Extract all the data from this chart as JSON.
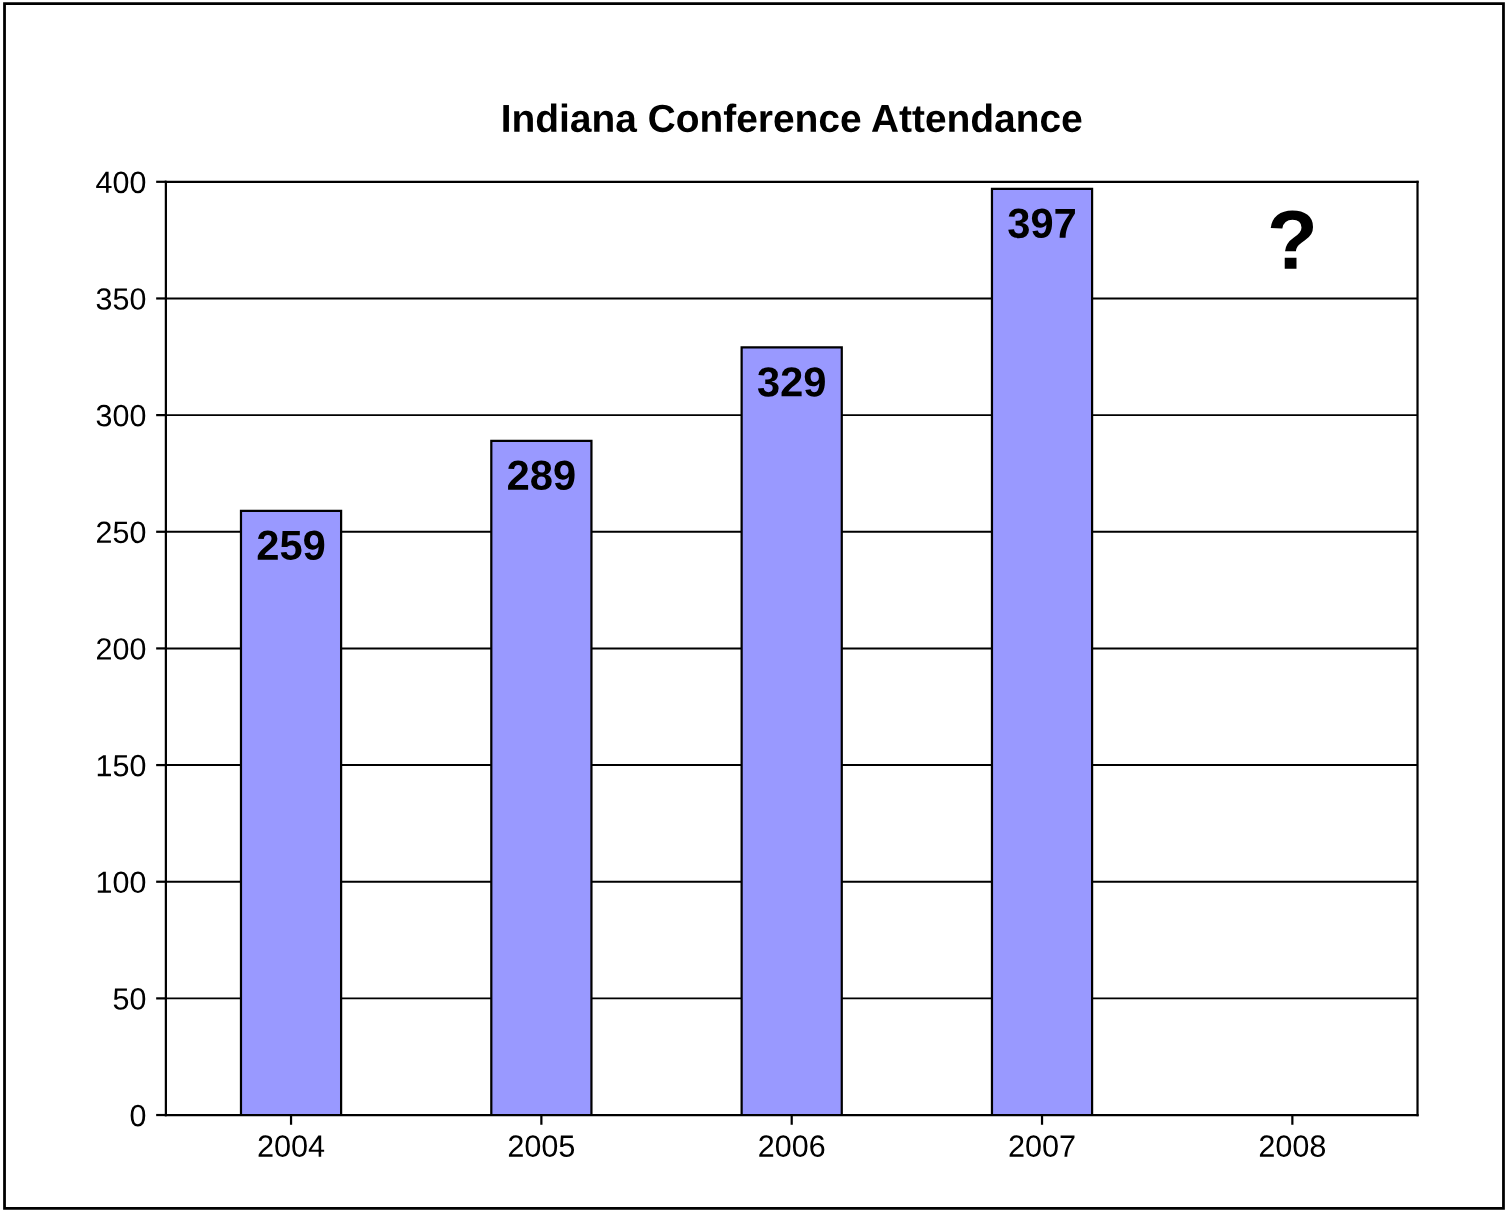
{
  "chart_data": {
    "type": "bar",
    "title": "Indiana Conference Attendance",
    "categories": [
      "2004",
      "2005",
      "2006",
      "2007",
      "2008"
    ],
    "values": [
      259,
      289,
      329,
      397,
      null
    ],
    "color": "#9999ff",
    "ylim": [
      0,
      400
    ],
    "yticks": [
      0,
      50,
      100,
      150,
      200,
      250,
      300,
      350,
      400
    ],
    "grid": "y",
    "data_labels": true,
    "annotations": [
      "?"
    ]
  }
}
